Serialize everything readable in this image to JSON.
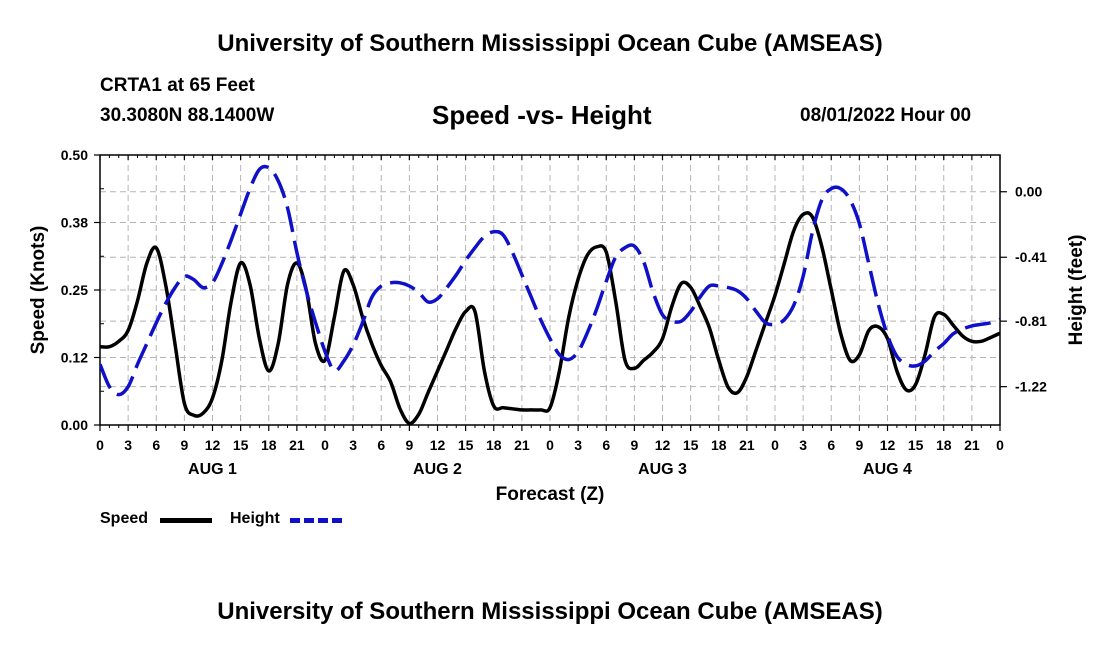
{
  "header": {
    "title": "University of Southern Mississippi Ocean Cube (AMSEAS)",
    "station": "CRTA1 at 65 Feet",
    "coordinates": "30.3080N  88.1400W",
    "subtitle": "Speed -vs- Height",
    "datetime": "08/01/2022 Hour 00"
  },
  "footer": {
    "title": "University of Southern Mississippi Ocean Cube (AMSEAS)"
  },
  "legend": {
    "speed_label": "Speed",
    "height_label": "Height"
  },
  "colors": {
    "speed": "#000000",
    "height": "#1010c8",
    "grid": "#b4b4b4"
  },
  "chart_data": {
    "type": "line",
    "title": "Speed -vs- Height",
    "xlabel": "Forecast (Z)",
    "ylabel": "Speed (Knots)",
    "y2label": "Height (feet)",
    "x_unit": "hours from 08/01/2022 00Z",
    "xlim": [
      0,
      96
    ],
    "ylim": [
      0,
      0.5
    ],
    "y2lim": [
      -1.46,
      0.23
    ],
    "x_tick_values": [
      0,
      3,
      6,
      9,
      12,
      15,
      18,
      21,
      24,
      27,
      30,
      33,
      36,
      39,
      42,
      45,
      48,
      51,
      54,
      57,
      60,
      63,
      66,
      69,
      72,
      75,
      78,
      81,
      84,
      87,
      90,
      93,
      96
    ],
    "x_tick_labels": [
      "0",
      "3",
      "6",
      "9",
      "12",
      "15",
      "18",
      "21",
      "0",
      "3",
      "6",
      "9",
      "12",
      "15",
      "18",
      "21",
      "0",
      "3",
      "6",
      "9",
      "12",
      "15",
      "18",
      "21",
      "0",
      "3",
      "6",
      "9",
      "12",
      "15",
      "18",
      "21",
      "0"
    ],
    "day_labels": [
      {
        "label": "AUG 1",
        "x": 12
      },
      {
        "label": "AUG 2",
        "x": 36
      },
      {
        "label": "AUG 3",
        "x": 60
      },
      {
        "label": "AUG 4",
        "x": 84
      }
    ],
    "y_ticks": [
      0,
      0.125,
      0.25,
      0.375,
      0.5
    ],
    "y_tick_labels": [
      "0.00",
      "0.12",
      "0.25",
      "0.38",
      "0.50"
    ],
    "y2_ticks": [
      -1.22,
      -0.81,
      -0.41,
      0.0
    ],
    "y2_tick_labels": [
      "-1.22",
      "-0.81",
      "-0.41",
      "0.00"
    ],
    "series": [
      {
        "name": "Speed",
        "axis": "left",
        "style": "solid",
        "x": [
          0,
          1,
          2,
          3,
          4,
          5,
          6,
          7,
          8,
          9,
          10,
          11,
          12,
          13,
          14,
          15,
          16,
          17,
          18,
          19,
          20,
          21,
          22,
          23,
          24,
          25,
          26,
          27,
          28,
          29,
          30,
          31,
          32,
          33,
          34,
          35,
          36,
          37,
          38,
          39,
          40,
          41,
          42,
          43,
          44,
          45,
          46,
          47,
          48,
          49,
          50,
          51,
          52,
          53,
          54,
          55,
          56,
          57,
          58,
          59,
          60,
          61,
          62,
          63,
          64,
          65,
          66,
          67,
          68,
          69,
          70,
          71,
          72,
          73,
          74,
          75,
          76,
          77,
          78,
          79,
          80,
          81,
          82,
          83,
          84,
          85,
          86,
          87,
          88,
          89,
          90,
          91,
          92,
          93,
          94,
          95,
          96
        ],
        "values": [
          0.145,
          0.145,
          0.155,
          0.175,
          0.23,
          0.3,
          0.328,
          0.26,
          0.15,
          0.04,
          0.018,
          0.022,
          0.05,
          0.12,
          0.23,
          0.3,
          0.26,
          0.16,
          0.1,
          0.15,
          0.26,
          0.3,
          0.25,
          0.15,
          0.12,
          0.2,
          0.285,
          0.26,
          0.2,
          0.15,
          0.11,
          0.08,
          0.03,
          0.003,
          0.02,
          0.06,
          0.1,
          0.14,
          0.18,
          0.21,
          0.21,
          0.1,
          0.035,
          0.032,
          0.03,
          0.028,
          0.028,
          0.028,
          0.032,
          0.1,
          0.2,
          0.27,
          0.315,
          0.33,
          0.32,
          0.23,
          0.12,
          0.105,
          0.12,
          0.135,
          0.16,
          0.22,
          0.262,
          0.255,
          0.22,
          0.18,
          0.12,
          0.07,
          0.06,
          0.09,
          0.14,
          0.19,
          0.24,
          0.3,
          0.36,
          0.39,
          0.385,
          0.33,
          0.25,
          0.17,
          0.12,
          0.13,
          0.175,
          0.182,
          0.16,
          0.1,
          0.065,
          0.075,
          0.13,
          0.2,
          0.205,
          0.185,
          0.165,
          0.155,
          0.155,
          0.162,
          0.17
        ]
      },
      {
        "name": "Height",
        "axis": "right",
        "style": "dashed",
        "x": [
          0,
          1,
          2,
          3,
          4,
          5,
          6,
          7,
          8,
          9,
          10,
          11,
          12,
          13,
          14,
          15,
          16,
          17,
          18,
          19,
          20,
          21,
          22,
          23,
          24,
          25,
          26,
          27,
          28,
          29,
          30,
          31,
          32,
          33,
          34,
          35,
          36,
          37,
          38,
          39,
          40,
          41,
          42,
          43,
          44,
          45,
          46,
          47,
          48,
          49,
          50,
          51,
          52,
          53,
          54,
          55,
          56,
          57,
          58,
          59,
          60,
          61,
          62,
          63,
          64,
          65,
          66,
          67,
          68,
          69,
          70,
          71,
          72,
          73,
          74,
          75,
          76,
          77,
          78,
          79,
          80,
          81,
          82,
          83,
          84,
          85,
          86,
          87,
          88,
          89,
          90,
          91,
          92,
          93,
          94,
          95,
          96
        ],
        "values": [
          -1.08,
          -1.22,
          -1.27,
          -1.22,
          -1.08,
          -0.95,
          -0.82,
          -0.7,
          -0.6,
          -0.53,
          -0.55,
          -0.6,
          -0.57,
          -0.45,
          -0.3,
          -0.14,
          0.02,
          0.14,
          0.15,
          0.07,
          -0.1,
          -0.38,
          -0.62,
          -0.82,
          -1.0,
          -1.12,
          -1.06,
          -0.96,
          -0.82,
          -0.66,
          -0.59,
          -0.57,
          -0.57,
          -0.59,
          -0.63,
          -0.69,
          -0.67,
          -0.6,
          -0.52,
          -0.43,
          -0.35,
          -0.28,
          -0.25,
          -0.27,
          -0.38,
          -0.52,
          -0.66,
          -0.8,
          -0.92,
          -1.02,
          -1.05,
          -1.0,
          -0.88,
          -0.73,
          -0.56,
          -0.41,
          -0.35,
          -0.34,
          -0.44,
          -0.63,
          -0.77,
          -0.81,
          -0.81,
          -0.75,
          -0.66,
          -0.59,
          -0.59,
          -0.6,
          -0.62,
          -0.67,
          -0.75,
          -0.82,
          -0.83,
          -0.8,
          -0.71,
          -0.53,
          -0.25,
          -0.05,
          0.02,
          0.02,
          -0.05,
          -0.2,
          -0.45,
          -0.7,
          -0.9,
          -1.03,
          -1.08,
          -1.09,
          -1.06,
          -1.0,
          -0.95,
          -0.89,
          -0.86,
          -0.84,
          -0.83,
          -0.82,
          -0.8
        ]
      }
    ]
  }
}
